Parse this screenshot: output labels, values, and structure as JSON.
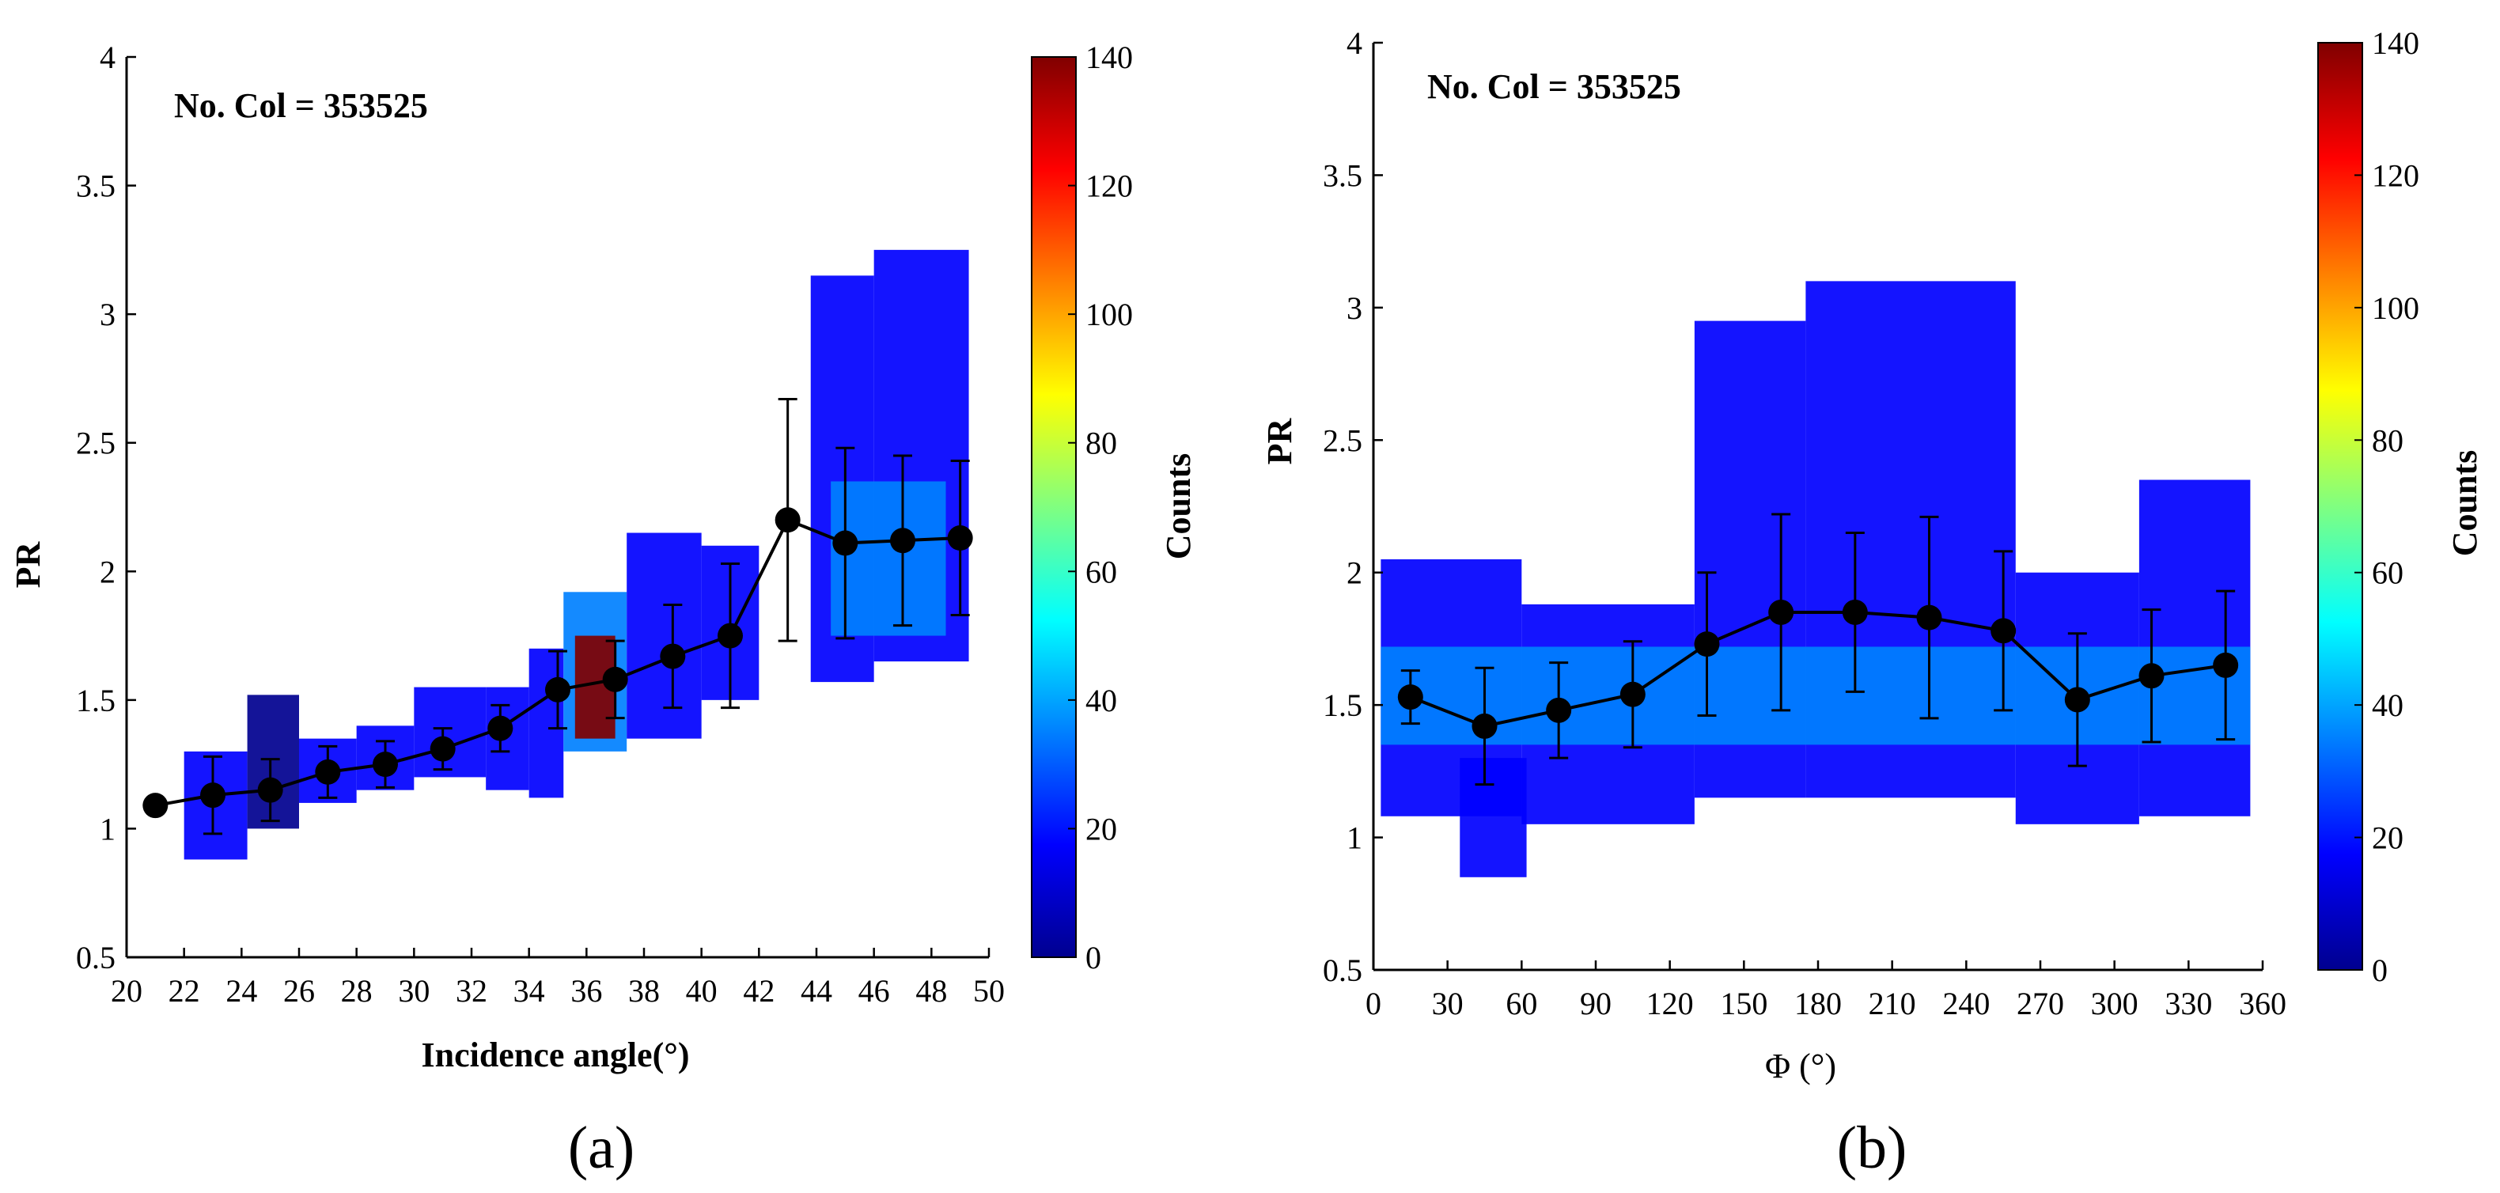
{
  "colormap": [
    "#00008f",
    "#0000ff",
    "#0080ff",
    "#00ffff",
    "#80ff80",
    "#ffff00",
    "#ff8000",
    "#ff0000",
    "#800000"
  ],
  "chart_data": [
    {
      "type": "scatter",
      "panel_label": "(a)",
      "annotation": "No. Col = 353525",
      "xlabel": "Incidence angle(°)",
      "ylabel": "PR",
      "xlim": [
        20,
        50
      ],
      "ylim": [
        0.5,
        4
      ],
      "xticks": [
        20,
        22,
        24,
        26,
        28,
        30,
        32,
        34,
        36,
        38,
        40,
        42,
        44,
        46,
        48,
        50
      ],
      "yticks": [
        0.5,
        1,
        1.5,
        2,
        2.5,
        3,
        3.5,
        4
      ],
      "colorbar": {
        "label": "Counts",
        "lim": [
          0,
          140
        ],
        "ticks": [
          0,
          20,
          40,
          60,
          80,
          100,
          120,
          140
        ]
      },
      "mean_curve": {
        "x": [
          21,
          23,
          25,
          27,
          29,
          31,
          33,
          35,
          37,
          39,
          41,
          43,
          45,
          47,
          49
        ],
        "y": [
          1.09,
          1.13,
          1.15,
          1.22,
          1.25,
          1.31,
          1.39,
          1.54,
          1.58,
          1.67,
          1.75,
          2.2,
          2.11,
          2.12,
          2.13
        ],
        "err": [
          0,
          0.15,
          0.12,
          0.1,
          0.09,
          0.08,
          0.09,
          0.15,
          0.15,
          0.2,
          0.28,
          0.47,
          0.37,
          0.33,
          0.3
        ]
      },
      "density_regions": [
        {
          "x": [
            22.0,
            24.2
          ],
          "y": [
            0.88,
            1.3
          ],
          "level": 12
        },
        {
          "x": [
            24.2,
            26.0
          ],
          "y": [
            1.0,
            1.52
          ],
          "level": 8
        },
        {
          "x": [
            26.0,
            28.0
          ],
          "y": [
            1.1,
            1.35
          ],
          "level": 14
        },
        {
          "x": [
            28.0,
            30.0
          ],
          "y": [
            1.15,
            1.4
          ],
          "level": 16
        },
        {
          "x": [
            30.0,
            32.5
          ],
          "y": [
            1.2,
            1.55
          ],
          "level": 18
        },
        {
          "x": [
            32.5,
            34.0
          ],
          "y": [
            1.15,
            1.55
          ],
          "level": 22
        },
        {
          "x": [
            34.0,
            35.2
          ],
          "y": [
            1.12,
            1.7
          ],
          "level": 25
        },
        {
          "x": [
            35.2,
            37.4
          ],
          "y": [
            1.3,
            1.92
          ],
          "level": 28
        },
        {
          "x": [
            35.6,
            37.0
          ],
          "y": [
            1.35,
            1.75
          ],
          "level": 138
        },
        {
          "x": [
            37.4,
            40.0
          ],
          "y": [
            1.35,
            2.15
          ],
          "level": 24
        },
        {
          "x": [
            40.0,
            42.0
          ],
          "y": [
            1.5,
            2.1
          ],
          "level": 16
        },
        {
          "x": [
            43.8,
            46.0
          ],
          "y": [
            1.57,
            3.15
          ],
          "level": 14
        },
        {
          "x": [
            46.0,
            49.3
          ],
          "y": [
            1.65,
            3.25
          ],
          "level": 12
        },
        {
          "x": [
            44.5,
            48.5
          ],
          "y": [
            1.75,
            2.35
          ],
          "level": 30
        }
      ]
    },
    {
      "type": "scatter",
      "panel_label": "(b)",
      "annotation": "No. Col = 353525",
      "xlabel": "Φ (°)",
      "ylabel": "PR",
      "xlim": [
        0,
        360
      ],
      "ylim": [
        0.5,
        4
      ],
      "xticks": [
        0,
        30,
        60,
        90,
        120,
        150,
        180,
        210,
        240,
        270,
        300,
        330,
        360
      ],
      "yticks": [
        0.5,
        1,
        1.5,
        2,
        2.5,
        3,
        3.5,
        4
      ],
      "colorbar": {
        "label": "Counts",
        "lim": [
          0,
          140
        ],
        "ticks": [
          0,
          20,
          40,
          60,
          80,
          100,
          120,
          140
        ]
      },
      "mean_curve": {
        "x": [
          15,
          45,
          75,
          105,
          135,
          165,
          195,
          225,
          255,
          285,
          315,
          345
        ],
        "y": [
          1.53,
          1.42,
          1.48,
          1.54,
          1.73,
          1.85,
          1.85,
          1.83,
          1.78,
          1.52,
          1.61,
          1.65
        ],
        "err": [
          0.1,
          0.22,
          0.18,
          0.2,
          0.27,
          0.37,
          0.3,
          0.38,
          0.3,
          0.25,
          0.25,
          0.28
        ]
      },
      "density_regions": [
        {
          "x": [
            3,
            60
          ],
          "y": [
            1.08,
            2.05
          ],
          "level": 14
        },
        {
          "x": [
            35,
            62
          ],
          "y": [
            0.85,
            1.3
          ],
          "level": 10
        },
        {
          "x": [
            60,
            130
          ],
          "y": [
            1.05,
            1.88
          ],
          "level": 18
        },
        {
          "x": [
            130,
            175
          ],
          "y": [
            1.15,
            2.95
          ],
          "level": 16
        },
        {
          "x": [
            175,
            260
          ],
          "y": [
            1.15,
            3.1
          ],
          "level": 14
        },
        {
          "x": [
            260,
            310
          ],
          "y": [
            1.05,
            2.0
          ],
          "level": 18
        },
        {
          "x": [
            310,
            355
          ],
          "y": [
            1.08,
            2.35
          ],
          "level": 16
        },
        {
          "x": [
            3,
            355
          ],
          "y": [
            1.35,
            1.72
          ],
          "level": 32
        }
      ]
    }
  ]
}
